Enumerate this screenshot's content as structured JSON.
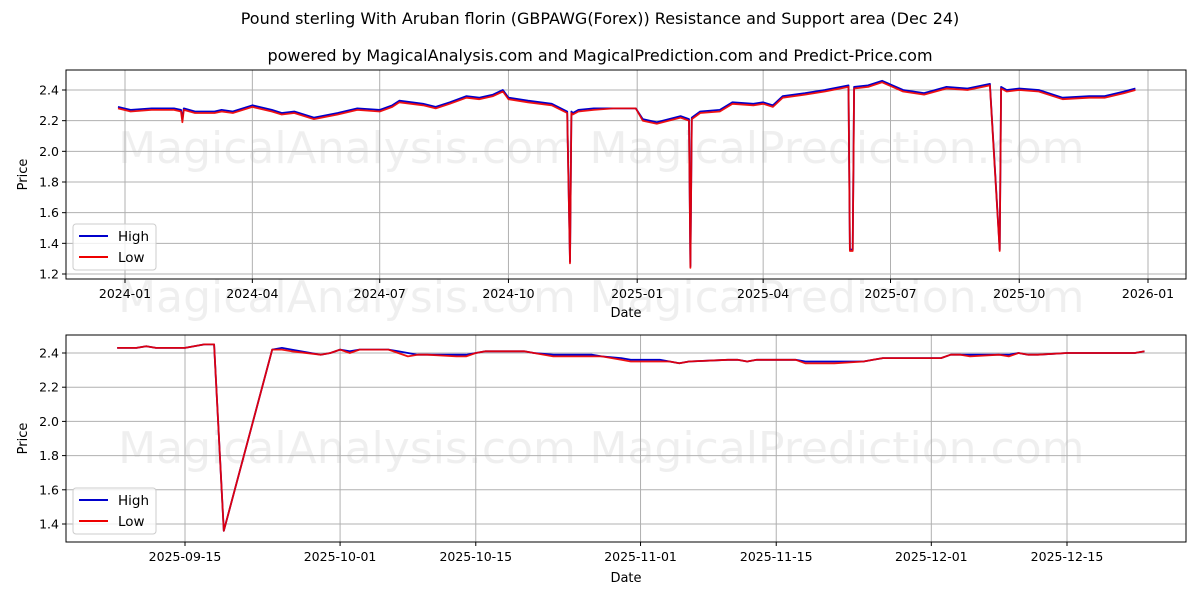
{
  "header": {
    "title": "Pound sterling With Aruban florin (GBPAWG(Forex)) Resistance and Support area (Dec 24)",
    "subtitle": "powered by MagicalAnalysis.com and MagicalPrediction.com and Predict-Price.com"
  },
  "watermarks": [
    "MagicalAnalysis.com",
    "MagicalPrediction.com"
  ],
  "colors": {
    "high": "#0000cc",
    "low": "#ee0000",
    "grid": "#b0b0b0"
  },
  "chart_data": [
    {
      "type": "line",
      "title": "Pound sterling With Aruban florin (GBPAWG(Forex)) Resistance and Support area (Dec 24)",
      "xlabel": "Date",
      "ylabel": "Price",
      "ylim": [
        1.18,
        2.52
      ],
      "yticks": [
        "1.2",
        "1.4",
        "1.6",
        "1.8",
        "2.0",
        "2.2",
        "2.4"
      ],
      "xticks": [
        "2024-01",
        "2024-04",
        "2024-07",
        "2024-10",
        "2025-01",
        "2025-04",
        "2025-07",
        "2025-10",
        "2026-01"
      ],
      "grid": true,
      "legend": {
        "position": "lower left",
        "entries": [
          "High",
          "Low"
        ]
      },
      "x": [
        "2023-12-27",
        "2024-01-05",
        "2024-01-20",
        "2024-02-05",
        "2024-02-10",
        "2024-02-11",
        "2024-02-12",
        "2024-02-20",
        "2024-03-05",
        "2024-03-10",
        "2024-03-18",
        "2024-04-01",
        "2024-04-15",
        "2024-04-22",
        "2024-05-01",
        "2024-05-15",
        "2024-06-01",
        "2024-06-15",
        "2024-07-01",
        "2024-07-10",
        "2024-07-15",
        "2024-08-01",
        "2024-08-10",
        "2024-08-20",
        "2024-09-01",
        "2024-09-10",
        "2024-09-20",
        "2024-09-27",
        "2024-10-01",
        "2024-10-15",
        "2024-11-01",
        "2024-11-12",
        "2024-11-14",
        "2024-11-15",
        "2024-11-16",
        "2024-11-20",
        "2024-12-01",
        "2024-12-15",
        "2024-12-31",
        "2025-01-05",
        "2025-01-15",
        "2025-02-01",
        "2025-02-07",
        "2025-02-08",
        "2025-02-09",
        "2025-02-15",
        "2025-03-01",
        "2025-03-10",
        "2025-03-25",
        "2025-04-01",
        "2025-04-08",
        "2025-04-15",
        "2025-05-01",
        "2025-05-15",
        "2025-06-01",
        "2025-06-02",
        "2025-06-04",
        "2025-06-05",
        "2025-06-15",
        "2025-06-25",
        "2025-07-10",
        "2025-07-25",
        "2025-08-10",
        "2025-08-25",
        "2025-09-10",
        "2025-09-17",
        "2025-09-18",
        "2025-09-22",
        "2025-10-01",
        "2025-10-15",
        "2025-11-01",
        "2025-11-20",
        "2025-12-01",
        "2025-12-15",
        "2025-12-23"
      ],
      "series": [
        {
          "name": "High",
          "values": [
            2.29,
            2.27,
            2.28,
            2.28,
            2.27,
            2.21,
            2.28,
            2.26,
            2.26,
            2.27,
            2.26,
            2.3,
            2.27,
            2.25,
            2.26,
            2.22,
            2.25,
            2.28,
            2.27,
            2.3,
            2.33,
            2.31,
            2.29,
            2.32,
            2.36,
            2.35,
            2.37,
            2.4,
            2.35,
            2.33,
            2.31,
            2.26,
            1.28,
            2.26,
            2.25,
            2.27,
            2.28,
            2.28,
            2.28,
            2.21,
            2.19,
            2.23,
            2.21,
            1.25,
            2.22,
            2.26,
            2.27,
            2.32,
            2.31,
            2.32,
            2.3,
            2.36,
            2.38,
            2.4,
            2.43,
            1.36,
            1.36,
            2.42,
            2.43,
            2.46,
            2.4,
            2.38,
            2.42,
            2.41,
            2.44,
            1.36,
            2.42,
            2.4,
            2.41,
            2.4,
            2.35,
            2.36,
            2.36,
            2.39,
            2.41
          ]
        },
        {
          "name": "Low",
          "values": [
            2.28,
            2.26,
            2.27,
            2.27,
            2.26,
            2.19,
            2.27,
            2.25,
            2.25,
            2.26,
            2.25,
            2.29,
            2.26,
            2.24,
            2.25,
            2.21,
            2.24,
            2.27,
            2.26,
            2.29,
            2.32,
            2.3,
            2.28,
            2.31,
            2.35,
            2.34,
            2.36,
            2.39,
            2.34,
            2.32,
            2.3,
            2.25,
            1.27,
            2.25,
            2.24,
            2.26,
            2.27,
            2.28,
            2.28,
            2.2,
            2.18,
            2.22,
            2.2,
            1.24,
            2.21,
            2.25,
            2.26,
            2.31,
            2.3,
            2.31,
            2.29,
            2.35,
            2.37,
            2.39,
            2.42,
            1.35,
            1.35,
            2.41,
            2.42,
            2.45,
            2.39,
            2.37,
            2.41,
            2.4,
            2.43,
            1.35,
            2.41,
            2.39,
            2.4,
            2.39,
            2.34,
            2.35,
            2.35,
            2.38,
            2.4
          ]
        }
      ]
    },
    {
      "type": "line",
      "title": "",
      "xlabel": "Date",
      "ylabel": "Price",
      "ylim": [
        1.3,
        2.51
      ],
      "yticks": [
        "1.4",
        "1.6",
        "1.8",
        "2.0",
        "2.2",
        "2.4"
      ],
      "xticks": [
        "2025-09-15",
        "2025-10-01",
        "2025-10-15",
        "2025-11-01",
        "2025-11-15",
        "2025-12-01",
        "2025-12-15"
      ],
      "grid": true,
      "legend": {
        "position": "lower left",
        "entries": [
          "High",
          "Low"
        ]
      },
      "x": [
        "2025-09-08",
        "2025-09-10",
        "2025-09-11",
        "2025-09-12",
        "2025-09-15",
        "2025-09-17",
        "2025-09-18",
        "2025-09-19",
        "2025-09-24",
        "2025-09-25",
        "2025-09-26",
        "2025-09-29",
        "2025-09-30",
        "2025-10-01",
        "2025-10-02",
        "2025-10-03",
        "2025-10-06",
        "2025-10-07",
        "2025-10-08",
        "2025-10-09",
        "2025-10-10",
        "2025-10-13",
        "2025-10-14",
        "2025-10-15",
        "2025-10-16",
        "2025-10-20",
        "2025-10-21",
        "2025-10-23",
        "2025-10-27",
        "2025-10-28",
        "2025-10-30",
        "2025-10-31",
        "2025-11-03",
        "2025-11-04",
        "2025-11-05",
        "2025-11-06",
        "2025-11-10",
        "2025-11-11",
        "2025-11-12",
        "2025-11-13",
        "2025-11-14",
        "2025-11-17",
        "2025-11-18",
        "2025-11-20",
        "2025-11-21",
        "2025-11-24",
        "2025-11-25",
        "2025-11-26",
        "2025-11-28",
        "2025-12-01",
        "2025-12-02",
        "2025-12-03",
        "2025-12-04",
        "2025-12-05",
        "2025-12-08",
        "2025-12-09",
        "2025-12-10",
        "2025-12-11",
        "2025-12-12",
        "2025-12-15",
        "2025-12-16",
        "2025-12-17",
        "2025-12-18",
        "2025-12-19",
        "2025-12-22",
        "2025-12-23"
      ],
      "series": [
        {
          "name": "High",
          "values": [
            2.43,
            2.43,
            2.44,
            2.43,
            2.43,
            2.45,
            2.45,
            1.36,
            2.42,
            2.43,
            2.42,
            2.39,
            2.4,
            2.42,
            2.41,
            2.42,
            2.42,
            2.41,
            2.4,
            2.39,
            2.39,
            2.39,
            2.39,
            2.4,
            2.41,
            2.41,
            2.4,
            2.39,
            2.39,
            2.38,
            2.37,
            2.36,
            2.36,
            2.35,
            2.34,
            2.35,
            2.36,
            2.36,
            2.35,
            2.36,
            2.36,
            2.36,
            2.35,
            2.35,
            2.35,
            2.35,
            2.36,
            2.37,
            2.37,
            2.37,
            2.37,
            2.39,
            2.39,
            2.39,
            2.39,
            2.39,
            2.4,
            2.39,
            2.39,
            2.4,
            2.4,
            2.4,
            2.4,
            2.4,
            2.4,
            2.41
          ]
        },
        {
          "name": "Low",
          "values": [
            2.43,
            2.43,
            2.44,
            2.43,
            2.43,
            2.45,
            2.45,
            1.36,
            2.42,
            2.42,
            2.41,
            2.39,
            2.4,
            2.42,
            2.4,
            2.42,
            2.42,
            2.4,
            2.38,
            2.39,
            2.39,
            2.38,
            2.38,
            2.4,
            2.41,
            2.41,
            2.4,
            2.38,
            2.38,
            2.38,
            2.36,
            2.35,
            2.35,
            2.35,
            2.34,
            2.35,
            2.36,
            2.36,
            2.35,
            2.36,
            2.36,
            2.36,
            2.34,
            2.34,
            2.34,
            2.35,
            2.36,
            2.37,
            2.37,
            2.37,
            2.37,
            2.39,
            2.39,
            2.38,
            2.39,
            2.38,
            2.4,
            2.39,
            2.39,
            2.4,
            2.4,
            2.4,
            2.4,
            2.4,
            2.4,
            2.41
          ]
        }
      ]
    }
  ]
}
